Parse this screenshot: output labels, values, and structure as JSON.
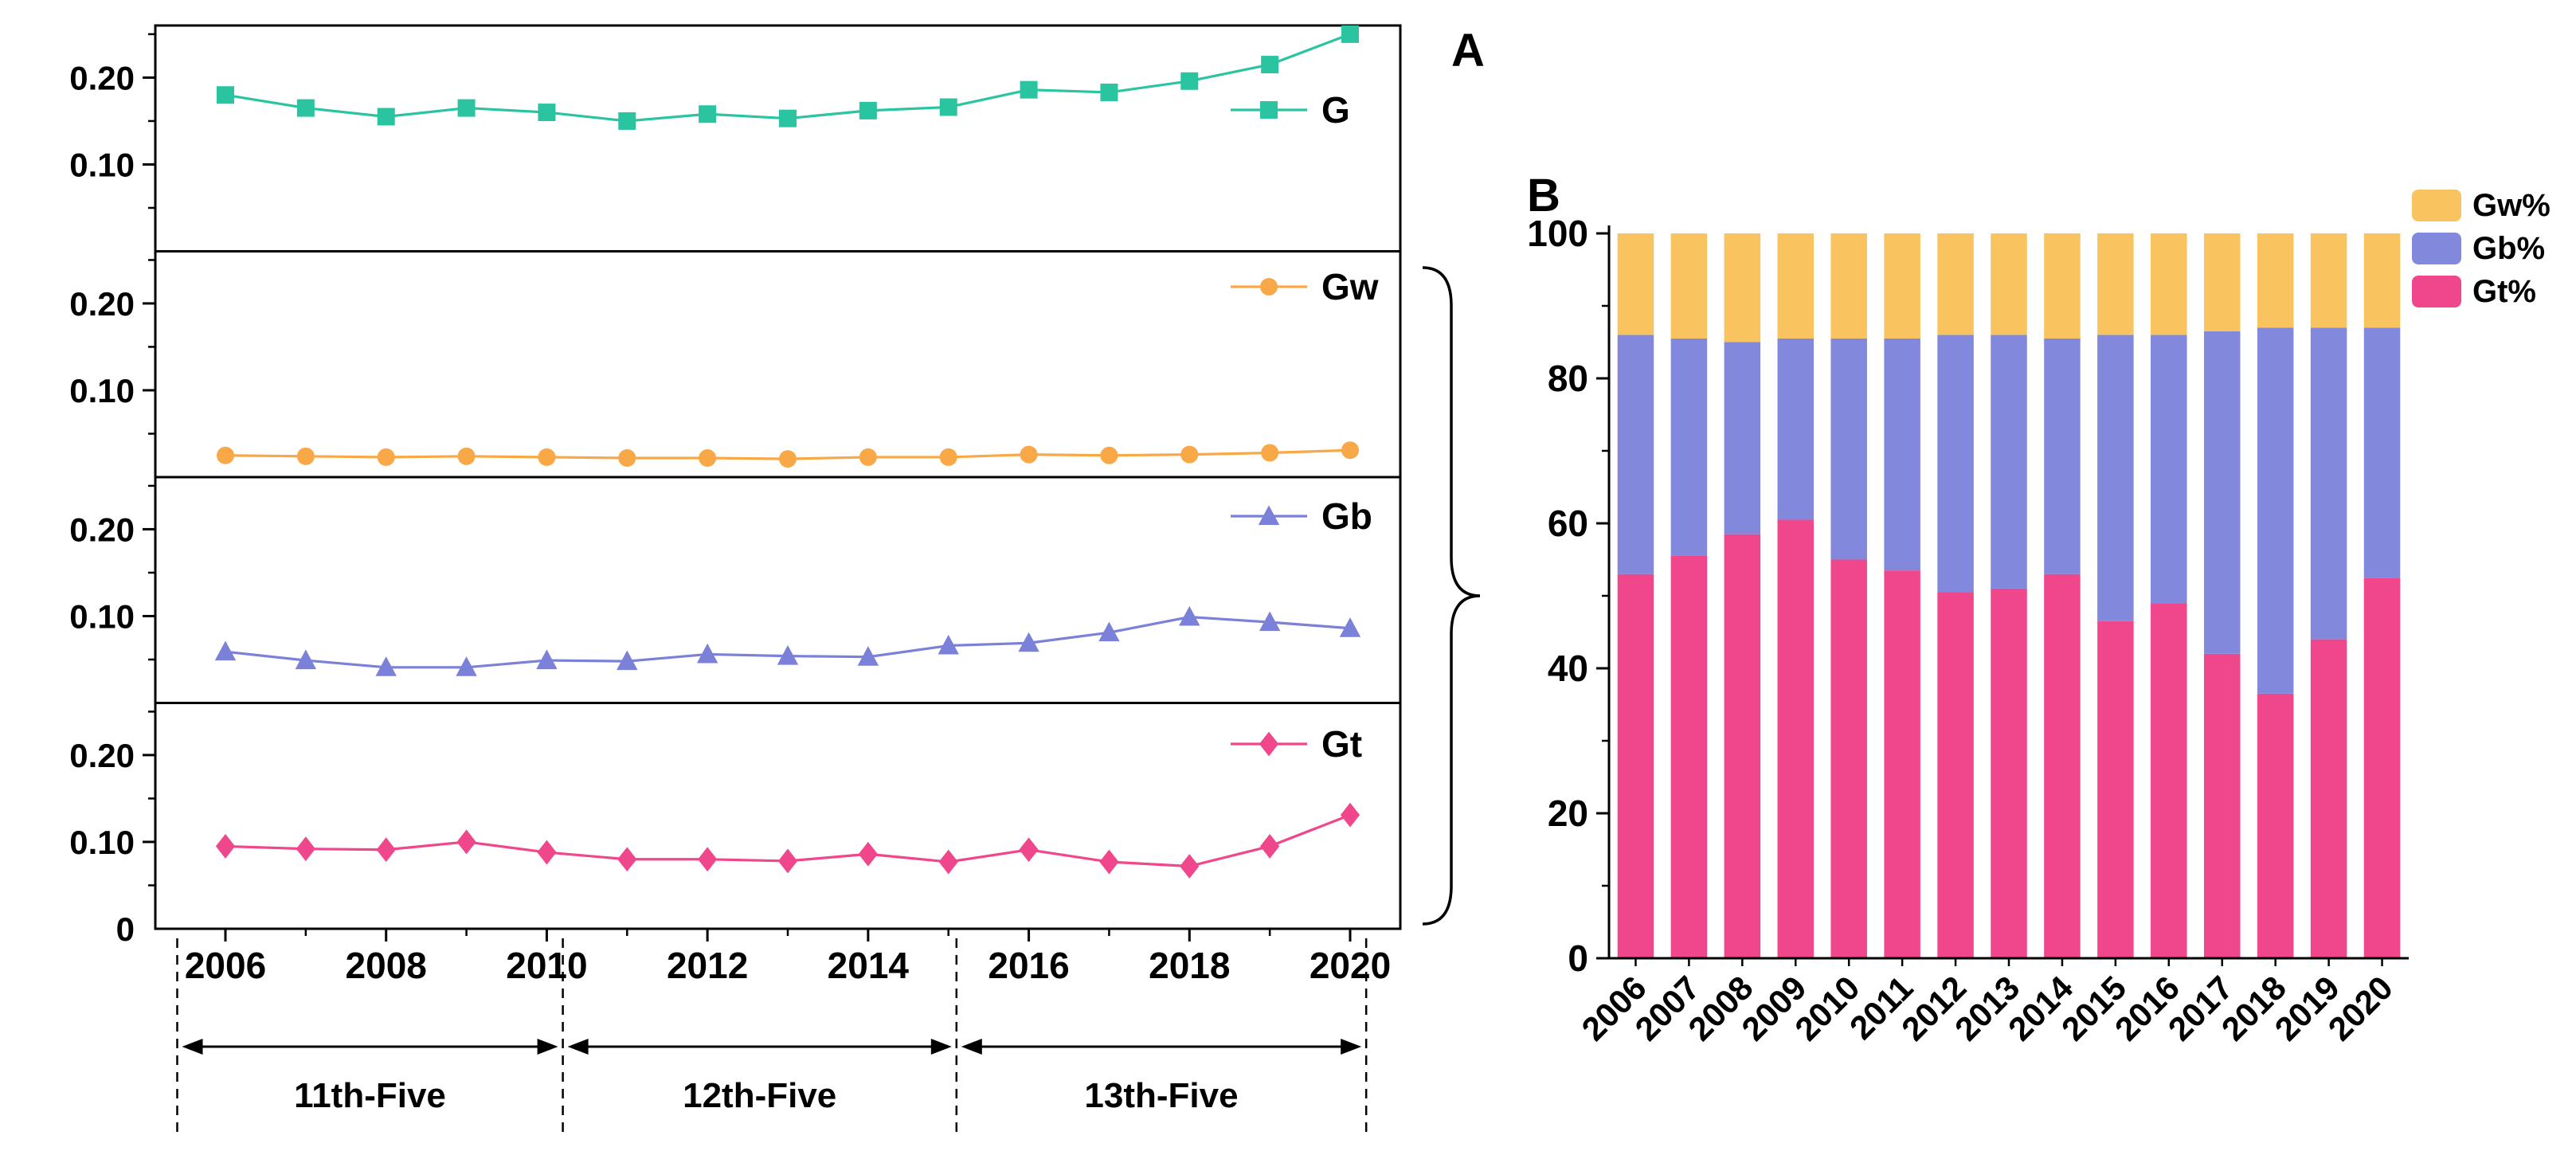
{
  "panel_labels": {
    "a": "A",
    "b": "B"
  },
  "chart_data": [
    {
      "id": "panel-a",
      "type": "line",
      "layout": "stacked-subplots",
      "title": "",
      "x": [
        2006,
        2007,
        2008,
        2009,
        2010,
        2011,
        2012,
        2013,
        2014,
        2015,
        2016,
        2017,
        2018,
        2019,
        2020
      ],
      "x_tick_years": [
        2006,
        2008,
        2010,
        2012,
        2014,
        2016,
        2018,
        2020
      ],
      "x_tick_labels": [
        "2006",
        "2008",
        "2010",
        "2012",
        "2014",
        "2016",
        "2018",
        "2020"
      ],
      "ylim": [
        0,
        0.26
      ],
      "y_major_ticks": [
        {
          "value": 0.1,
          "label": "0.10"
        },
        {
          "value": 0.2,
          "label": "0.20"
        }
      ],
      "y_minor_ticks": [
        0.05,
        0.15,
        0.25
      ],
      "y_zero_label": "0",
      "series": [
        {
          "name": "G",
          "marker": "square",
          "color": "#2BC4A0",
          "values": [
            0.18,
            0.165,
            0.155,
            0.165,
            0.16,
            0.15,
            0.158,
            0.153,
            0.162,
            0.166,
            0.186,
            0.183,
            0.196,
            0.215,
            0.25
          ]
        },
        {
          "name": "Gw",
          "marker": "circle",
          "color": "#F9A848",
          "values": [
            0.025,
            0.024,
            0.023,
            0.024,
            0.023,
            0.022,
            0.022,
            0.021,
            0.023,
            0.023,
            0.026,
            0.025,
            0.026,
            0.028,
            0.031
          ]
        },
        {
          "name": "Gb",
          "marker": "triangle",
          "color": "#7B80D8",
          "values": [
            0.059,
            0.049,
            0.041,
            0.041,
            0.049,
            0.048,
            0.056,
            0.054,
            0.053,
            0.066,
            0.069,
            0.081,
            0.099,
            0.093,
            0.086
          ]
        },
        {
          "name": "Gt",
          "marker": "diamond",
          "color": "#F0468C",
          "values": [
            0.095,
            0.092,
            0.091,
            0.1,
            0.088,
            0.08,
            0.08,
            0.078,
            0.086,
            0.077,
            0.091,
            0.077,
            0.072,
            0.095,
            0.131
          ]
        }
      ],
      "period_boundaries": [
        2005.4,
        2010.2,
        2015.1,
        2020.2
      ],
      "period_labels": [
        "11th-Five",
        "12th-Five",
        "13th-Five"
      ]
    },
    {
      "id": "panel-b",
      "type": "bar-stacked",
      "title": "",
      "categories": [
        "2006",
        "2007",
        "2008",
        "2009",
        "2010",
        "2011",
        "2012",
        "2013",
        "2014",
        "2015",
        "2016",
        "2017",
        "2018",
        "2019",
        "2020"
      ],
      "ylim": [
        0,
        100
      ],
      "y_tick_values": [
        0,
        20,
        40,
        60,
        80,
        100
      ],
      "series_bottom_to_top": [
        {
          "name": "Gt%",
          "color": "#F0468C",
          "values": [
            53,
            55.5,
            58.5,
            60.5,
            55,
            53.5,
            50.5,
            51,
            53,
            46.5,
            49,
            42,
            36.5,
            44,
            52.5
          ]
        },
        {
          "name": "Gb%",
          "color": "#8288DC",
          "values": [
            33,
            30,
            26.5,
            25,
            30.5,
            32,
            35.5,
            35,
            32.5,
            39.5,
            37,
            44.5,
            50.5,
            43,
            34.5
          ]
        },
        {
          "name": "Gw%",
          "color": "#F9C45F",
          "values": [
            14,
            14.5,
            15,
            14.5,
            14.5,
            14.5,
            14,
            14,
            14.5,
            14,
            14,
            13.5,
            13,
            13,
            13
          ]
        }
      ],
      "legend_position": "top-right",
      "legend": [
        {
          "name": "Gw%",
          "color": "#F9C45F"
        },
        {
          "name": "Gb%",
          "color": "#8288DC"
        },
        {
          "name": "Gt%",
          "color": "#F0468C"
        }
      ]
    }
  ]
}
